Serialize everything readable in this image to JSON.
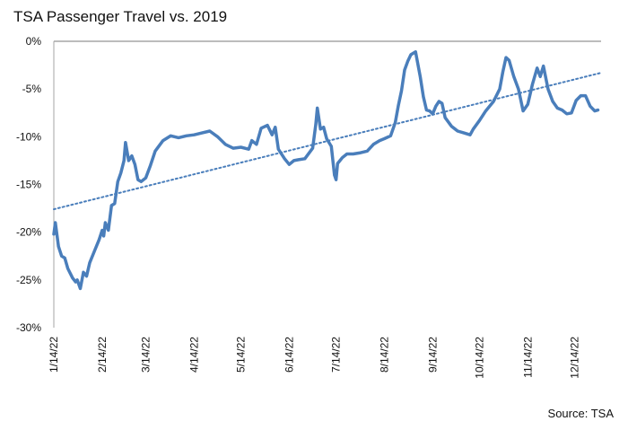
{
  "header": {
    "title": "TSA Passenger Travel vs. 2019"
  },
  "footer": {
    "source": "Source: TSA"
  },
  "colors": {
    "series": "#4a7ebb",
    "trend": "#4a7ebb",
    "axis": "#a6a6a6",
    "zero_line": "#a6a6a6"
  },
  "chart_data": {
    "type": "line",
    "title": "TSA Passenger Travel vs. 2019",
    "xlabel": "",
    "ylabel": "",
    "ylim": [
      -30,
      0
    ],
    "ytick_labels": [
      "0%",
      "-5%",
      "-10%",
      "-15%",
      "-20%",
      "-25%",
      "-30%"
    ],
    "yticks": [
      0,
      -5,
      -10,
      -15,
      -20,
      -25,
      -30
    ],
    "xlim": [
      "2022-01-14",
      "2022-12-31"
    ],
    "xtick_labels": [
      "1/14/22",
      "2/14/22",
      "3/14/22",
      "4/14/22",
      "5/14/22",
      "6/14/22",
      "7/14/22",
      "8/14/22",
      "9/14/22",
      "10/14/22",
      "11/14/22",
      "12/14/22"
    ],
    "xticks": [
      "2022-01-14",
      "2022-02-14",
      "2022-03-14",
      "2022-04-14",
      "2022-05-14",
      "2022-06-14",
      "2022-07-14",
      "2022-08-14",
      "2022-09-14",
      "2022-10-14",
      "2022-11-14",
      "2022-12-14"
    ],
    "grid": false,
    "series": [
      {
        "style": "solid",
        "points": [
          [
            "2022-01-14",
            -20.2
          ],
          [
            "2022-01-15",
            -19.0
          ],
          [
            "2022-01-17",
            -21.5
          ],
          [
            "2022-01-19",
            -22.5
          ],
          [
            "2022-01-21",
            -22.7
          ],
          [
            "2022-01-23",
            -23.8
          ],
          [
            "2022-01-26",
            -24.8
          ],
          [
            "2022-01-28",
            -25.2
          ],
          [
            "2022-01-29",
            -25.0
          ],
          [
            "2022-01-31",
            -25.9
          ],
          [
            "2022-02-02",
            -24.2
          ],
          [
            "2022-02-04",
            -24.6
          ],
          [
            "2022-02-06",
            -23.2
          ],
          [
            "2022-02-09",
            -22.0
          ],
          [
            "2022-02-12",
            -20.8
          ],
          [
            "2022-02-14",
            -19.8
          ],
          [
            "2022-02-15",
            -20.4
          ],
          [
            "2022-02-16",
            -19.0
          ],
          [
            "2022-02-18",
            -19.8
          ],
          [
            "2022-02-20",
            -17.2
          ],
          [
            "2022-02-22",
            -17.0
          ],
          [
            "2022-02-24",
            -14.7
          ],
          [
            "2022-02-26",
            -13.8
          ],
          [
            "2022-02-28",
            -12.5
          ],
          [
            "2022-03-01",
            -10.6
          ],
          [
            "2022-03-03",
            -12.5
          ],
          [
            "2022-03-05",
            -12.0
          ],
          [
            "2022-03-07",
            -12.9
          ],
          [
            "2022-03-09",
            -14.5
          ],
          [
            "2022-03-11",
            -14.7
          ],
          [
            "2022-03-14",
            -14.3
          ],
          [
            "2022-03-17",
            -13.0
          ],
          [
            "2022-03-20",
            -11.5
          ],
          [
            "2022-03-25",
            -10.4
          ],
          [
            "2022-03-30",
            -9.9
          ],
          [
            "2022-04-04",
            -10.1
          ],
          [
            "2022-04-09",
            -9.9
          ],
          [
            "2022-04-14",
            -9.8
          ],
          [
            "2022-04-19",
            -9.6
          ],
          [
            "2022-04-24",
            -9.4
          ],
          [
            "2022-04-29",
            -10.0
          ],
          [
            "2022-05-04",
            -10.8
          ],
          [
            "2022-05-09",
            -11.2
          ],
          [
            "2022-05-14",
            -11.1
          ],
          [
            "2022-05-19",
            -11.3
          ],
          [
            "2022-05-21",
            -10.4
          ],
          [
            "2022-05-24",
            -10.8
          ],
          [
            "2022-05-27",
            -9.1
          ],
          [
            "2022-05-31",
            -8.8
          ],
          [
            "2022-06-03",
            -9.8
          ],
          [
            "2022-06-05",
            -9.0
          ],
          [
            "2022-06-07",
            -11.3
          ],
          [
            "2022-06-11",
            -12.3
          ],
          [
            "2022-06-14",
            -12.9
          ],
          [
            "2022-06-17",
            -12.5
          ],
          [
            "2022-06-20",
            -12.4
          ],
          [
            "2022-06-24",
            -12.3
          ],
          [
            "2022-06-29",
            -11.2
          ],
          [
            "2022-07-01",
            -8.7
          ],
          [
            "2022-07-02",
            -7.0
          ],
          [
            "2022-07-04",
            -9.2
          ],
          [
            "2022-07-06",
            -9.0
          ],
          [
            "2022-07-08",
            -10.2
          ],
          [
            "2022-07-11",
            -11.0
          ],
          [
            "2022-07-13",
            -14.0
          ],
          [
            "2022-07-14",
            -14.5
          ],
          [
            "2022-07-15",
            -12.8
          ],
          [
            "2022-07-18",
            -12.2
          ],
          [
            "2022-07-21",
            -11.8
          ],
          [
            "2022-07-25",
            -11.8
          ],
          [
            "2022-07-29",
            -11.7
          ],
          [
            "2022-08-03",
            -11.5
          ],
          [
            "2022-08-07",
            -10.8
          ],
          [
            "2022-08-11",
            -10.4
          ],
          [
            "2022-08-14",
            -10.2
          ],
          [
            "2022-08-18",
            -9.9
          ],
          [
            "2022-08-21",
            -8.5
          ],
          [
            "2022-08-23",
            -6.7
          ],
          [
            "2022-08-25",
            -5.2
          ],
          [
            "2022-08-27",
            -3.0
          ],
          [
            "2022-08-29",
            -2.1
          ],
          [
            "2022-08-31",
            -1.4
          ],
          [
            "2022-09-03",
            -1.1
          ],
          [
            "2022-09-06",
            -3.7
          ],
          [
            "2022-09-08",
            -5.8
          ],
          [
            "2022-09-10",
            -7.2
          ],
          [
            "2022-09-12",
            -7.3
          ],
          [
            "2022-09-14",
            -7.6
          ],
          [
            "2022-09-16",
            -6.8
          ],
          [
            "2022-09-18",
            -6.3
          ],
          [
            "2022-09-20",
            -6.5
          ],
          [
            "2022-09-22",
            -8.0
          ],
          [
            "2022-09-26",
            -8.9
          ],
          [
            "2022-09-30",
            -9.4
          ],
          [
            "2022-10-04",
            -9.6
          ],
          [
            "2022-10-08",
            -9.8
          ],
          [
            "2022-10-10",
            -9.2
          ],
          [
            "2022-10-14",
            -8.3
          ],
          [
            "2022-10-18",
            -7.3
          ],
          [
            "2022-10-23",
            -6.3
          ],
          [
            "2022-10-27",
            -5.0
          ],
          [
            "2022-10-29",
            -3.2
          ],
          [
            "2022-10-31",
            -1.7
          ],
          [
            "2022-11-02",
            -2.0
          ],
          [
            "2022-11-05",
            -3.7
          ],
          [
            "2022-11-08",
            -5.0
          ],
          [
            "2022-11-11",
            -7.3
          ],
          [
            "2022-11-14",
            -6.6
          ],
          [
            "2022-11-17",
            -4.5
          ],
          [
            "2022-11-20",
            -2.8
          ],
          [
            "2022-11-22",
            -3.7
          ],
          [
            "2022-11-24",
            -2.6
          ],
          [
            "2022-11-27",
            -5.0
          ],
          [
            "2022-11-30",
            -6.3
          ],
          [
            "2022-12-03",
            -7.0
          ],
          [
            "2022-12-06",
            -7.2
          ],
          [
            "2022-12-09",
            -7.6
          ],
          [
            "2022-12-12",
            -7.5
          ],
          [
            "2022-12-15",
            -6.2
          ],
          [
            "2022-12-18",
            -5.7
          ],
          [
            "2022-12-21",
            -5.7
          ],
          [
            "2022-12-24",
            -6.8
          ],
          [
            "2022-12-27",
            -7.3
          ],
          [
            "2022-12-29",
            -7.2
          ]
        ]
      },
      {
        "style": "dotted-trendline",
        "points": [
          [
            "2022-01-14",
            -17.6
          ],
          [
            "2022-12-31",
            -3.3
          ]
        ]
      }
    ]
  }
}
